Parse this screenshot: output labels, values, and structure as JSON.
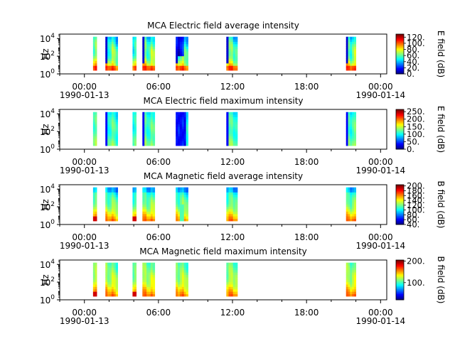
{
  "chart_data": [
    {
      "type": "heatmap",
      "title": "MCA  Electric field average intensity",
      "ylabel": "Hz",
      "colorbar_label": "E field (dB)",
      "colorbar_ticks": [
        "0.",
        "20.",
        "40.",
        "60.",
        "80.",
        "100.",
        "120."
      ],
      "colorbar_range": [
        0,
        130
      ],
      "ylim_log10": [
        0,
        4.5
      ],
      "y_ticks": [
        {
          "base": "10",
          "exp": "0",
          "log": 0
        },
        {
          "base": "10",
          "exp": "2",
          "log": 2
        },
        {
          "base": "10",
          "exp": "4",
          "log": 4
        }
      ],
      "x_ticks": [
        {
          "hours": 0,
          "time": "00:00",
          "date": "1990-01-13"
        },
        {
          "hours": 6,
          "time": "06:00",
          "date": ""
        },
        {
          "hours": 12,
          "time": "12:00",
          "date": ""
        },
        {
          "hours": 18,
          "time": "18:00",
          "date": ""
        },
        {
          "hours": 24,
          "time": "00:00",
          "date": "1990-01-14"
        }
      ],
      "variant": "e_avg"
    },
    {
      "type": "heatmap",
      "title": "MCA  Electric field maximum intensity",
      "ylabel": "Hz",
      "colorbar_label": "E field (dB)",
      "colorbar_ticks": [
        "0.",
        "50.",
        "100.",
        "150.",
        "200.",
        "250."
      ],
      "colorbar_range": [
        0,
        265
      ],
      "ylim_log10": [
        0,
        4.5
      ],
      "y_ticks": [
        {
          "base": "10",
          "exp": "0",
          "log": 0
        },
        {
          "base": "10",
          "exp": "2",
          "log": 2
        },
        {
          "base": "10",
          "exp": "4",
          "log": 4
        }
      ],
      "x_ticks": [
        {
          "hours": 0,
          "time": "00:00",
          "date": "1990-01-13"
        },
        {
          "hours": 6,
          "time": "06:00",
          "date": ""
        },
        {
          "hours": 12,
          "time": "12:00",
          "date": ""
        },
        {
          "hours": 18,
          "time": "18:00",
          "date": ""
        },
        {
          "hours": 24,
          "time": "00:00",
          "date": "1990-01-14"
        }
      ],
      "variant": "e_max"
    },
    {
      "type": "heatmap",
      "title": "MCA  Magnetic field average intensity",
      "ylabel": "Hz",
      "colorbar_label": "B field (dB)",
      "colorbar_ticks": [
        "40.",
        "60.",
        "80.",
        "100.",
        "120.",
        "140.",
        "160.",
        "180.",
        "200."
      ],
      "colorbar_range": [
        40,
        205
      ],
      "ylim_log10": [
        0,
        4.5
      ],
      "y_ticks": [
        {
          "base": "10",
          "exp": "0",
          "log": 0
        },
        {
          "base": "10",
          "exp": "2",
          "log": 2
        },
        {
          "base": "10",
          "exp": "4",
          "log": 4
        }
      ],
      "x_ticks": [
        {
          "hours": 0,
          "time": "00:00",
          "date": "1990-01-13"
        },
        {
          "hours": 6,
          "time": "06:00",
          "date": ""
        },
        {
          "hours": 12,
          "time": "12:00",
          "date": ""
        },
        {
          "hours": 18,
          "time": "18:00",
          "date": ""
        },
        {
          "hours": 24,
          "time": "00:00",
          "date": "1990-01-14"
        }
      ],
      "variant": "b_avg"
    },
    {
      "type": "heatmap",
      "title": "MCA  Magnetic field maximum intensity",
      "ylabel": "Hz",
      "colorbar_label": "B field (dB)",
      "colorbar_ticks": [
        "100.",
        "200."
      ],
      "colorbar_range": [
        20,
        205
      ],
      "ylim_log10": [
        0,
        4.5
      ],
      "y_ticks": [
        {
          "base": "10",
          "exp": "0",
          "log": 0
        },
        {
          "base": "10",
          "exp": "2",
          "log": 2
        },
        {
          "base": "10",
          "exp": "4",
          "log": 4
        }
      ],
      "x_ticks": [
        {
          "hours": 0,
          "time": "00:00",
          "date": "1990-01-13"
        },
        {
          "hours": 6,
          "time": "06:00",
          "date": ""
        },
        {
          "hours": 12,
          "time": "12:00",
          "date": ""
        },
        {
          "hours": 18,
          "time": "18:00",
          "date": ""
        },
        {
          "hours": 24,
          "time": "00:00",
          "date": "1990-01-14"
        }
      ],
      "variant": "b_max"
    }
  ],
  "time_range_hours": [
    -2,
    24.5
  ],
  "data_blocks_hours": [
    [
      0.7,
      1.0
    ],
    [
      1.7,
      2.7
    ],
    [
      3.9,
      4.2
    ],
    [
      4.7,
      5.7
    ],
    [
      7.4,
      8.4
    ],
    [
      11.5,
      12.4
    ],
    [
      21.2,
      22.0
    ]
  ]
}
